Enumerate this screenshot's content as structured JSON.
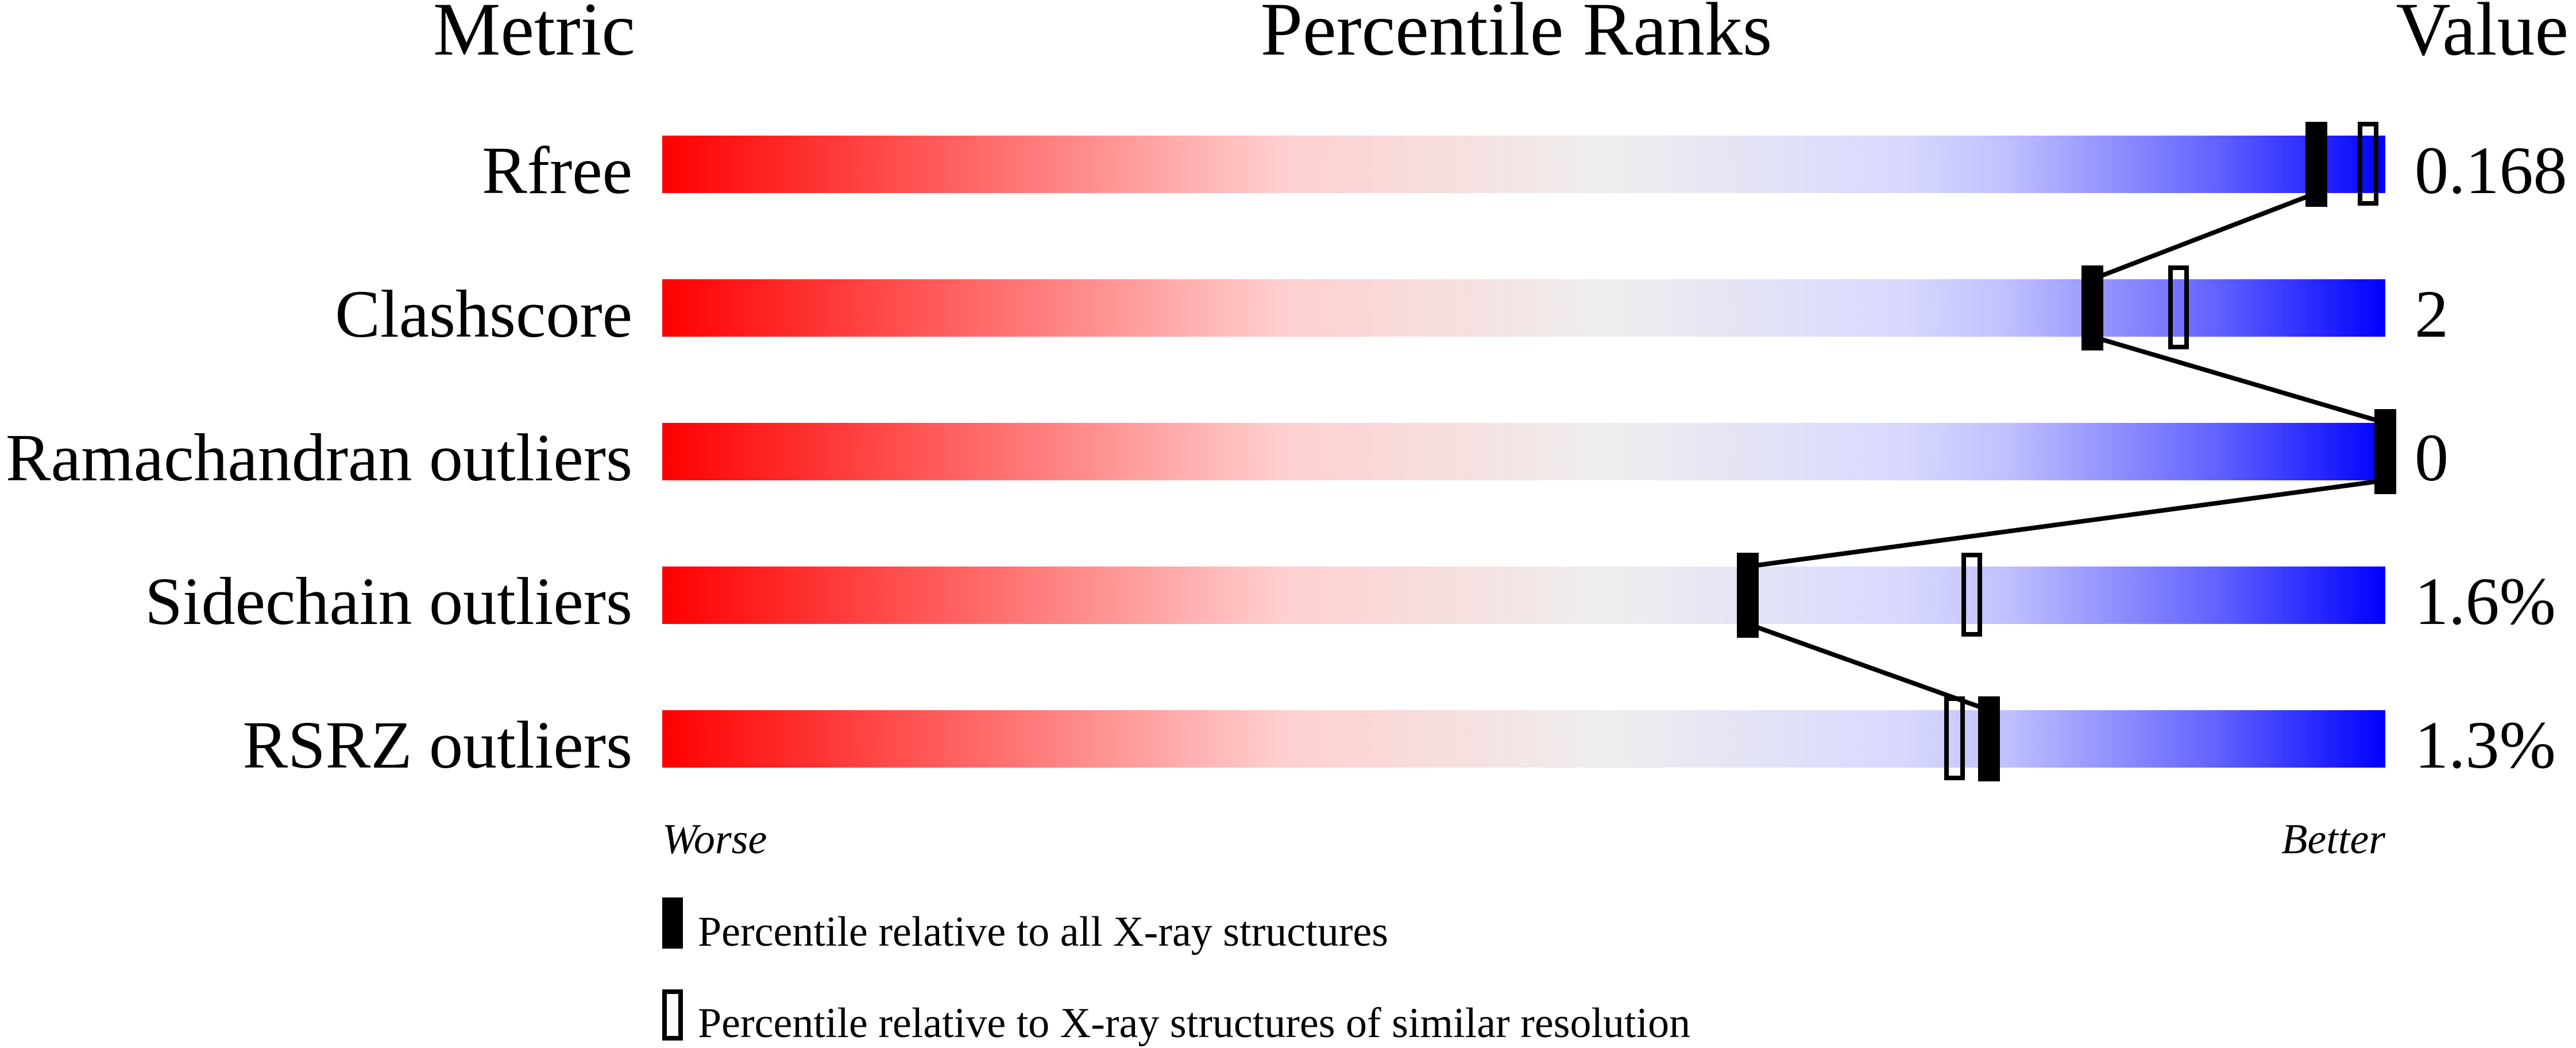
{
  "chart_data": {
    "type": "bar",
    "headers": {
      "metric": "Metric",
      "ranks": "Percentile Ranks",
      "value": "Value"
    },
    "xlim": [
      0,
      100
    ],
    "axis_labels": {
      "left": "Worse",
      "right": "Better"
    },
    "gradient_colors": [
      "#ff0000",
      "#eeeeee",
      "#0000ff"
    ],
    "metrics": [
      {
        "name": "Rfree",
        "value": "0.168",
        "percentile_all": 96,
        "percentile_similar": 99
      },
      {
        "name": "Clashscore",
        "value": "2",
        "percentile_all": 83,
        "percentile_similar": 88
      },
      {
        "name": "Ramachandran outliers",
        "value": "0",
        "percentile_all": 100,
        "percentile_similar": null
      },
      {
        "name": "Sidechain outliers",
        "value": "1.6%",
        "percentile_all": 63,
        "percentile_similar": 76
      },
      {
        "name": "RSRZ outliers",
        "value": "1.3%",
        "percentile_all": 77,
        "percentile_similar": 75
      }
    ],
    "legend": {
      "all": "Percentile relative to all X-ray structures",
      "similar": "Percentile relative to X-ray structures of similar resolution"
    }
  }
}
